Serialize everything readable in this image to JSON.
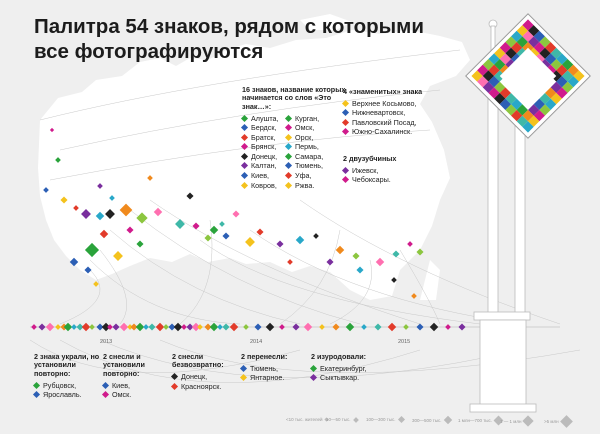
{
  "title": "Палитра 54 знаков, рядом с которыми все фотографируются",
  "colors": {
    "background": "#efefef",
    "map": "#ffffff",
    "ink": "#222222",
    "accent_magenta": "#d01b8c",
    "accent_green": "#2aa33b",
    "accent_blue": "#2c5fb5",
    "accent_yellow": "#f4c21d",
    "accent_red": "#e23b2a",
    "accent_purple": "#7a2f9e",
    "accent_cyan": "#29a8c9",
    "pole": "#ffffff"
  },
  "group16": {
    "heading": "16 знаков, название которых начинается со слов «Это знак…»:",
    "left": [
      {
        "text": "Алушта,",
        "color": "#2aa33b"
      },
      {
        "text": "Бердск,",
        "color": "#2c5fb5"
      },
      {
        "text": "Братск,",
        "color": "#e23b2a"
      },
      {
        "text": "Брянск,",
        "color": "#d01b8c"
      },
      {
        "text": "Донецк,",
        "color": "#222222"
      },
      {
        "text": "Калтан,",
        "color": "#7a2f9e"
      },
      {
        "text": "Киев,",
        "color": "#2c5fb5"
      },
      {
        "text": "Ковров,",
        "color": "#f4c21d"
      }
    ],
    "right": [
      {
        "text": "Курган,",
        "color": "#2aa33b"
      },
      {
        "text": "Омск,",
        "color": "#d01b8c"
      },
      {
        "text": "Орск,",
        "color": "#f4c21d"
      },
      {
        "text": "Пермь,",
        "color": "#29a8c9"
      },
      {
        "text": "Самара,",
        "color": "#2aa33b"
      },
      {
        "text": "Тюмень,",
        "color": "#2c5fb5"
      },
      {
        "text": "Уфа,",
        "color": "#e23b2a"
      },
      {
        "text": "Ржва.",
        "color": "#f4c21d"
      }
    ]
  },
  "group4": {
    "heading": "4 «знаменитых» знака",
    "items": [
      {
        "text": "Верхнее Косьмово,",
        "color": "#f4c21d"
      },
      {
        "text": "Нижневартовск,",
        "color": "#2c5fb5"
      },
      {
        "text": "Павловский Посад,",
        "color": "#e23b2a"
      },
      {
        "text": "Южно-Сахалинск.",
        "color": "#d01b8c"
      }
    ]
  },
  "group2": {
    "heading": "2 двузубчиных",
    "items": [
      {
        "text": "Ижевск,",
        "color": "#7a2f9e"
      },
      {
        "text": "Чебоксары.",
        "color": "#d01b8c"
      }
    ]
  },
  "bottom": [
    {
      "heading": "2 знака украли, но установили повторно:",
      "items": [
        {
          "text": "Рубцовск,",
          "color": "#2aa33b"
        },
        {
          "text": "Ярославль.",
          "color": "#2c5fb5"
        }
      ]
    },
    {
      "heading": "2 снесли и установили повторно:",
      "items": [
        {
          "text": "Киев,",
          "color": "#2c5fb5"
        },
        {
          "text": "Омск.",
          "color": "#d01b8c"
        }
      ]
    },
    {
      "heading": "2 снесли безвозвратно:",
      "items": [
        {
          "text": "Донецк,",
          "color": "#222222"
        },
        {
          "text": "Красноярск.",
          "color": "#e23b2a"
        }
      ]
    },
    {
      "heading": "2 перенесли:",
      "items": [
        {
          "text": "Тюмень,",
          "color": "#2c5fb5"
        },
        {
          "text": "Янтарное.",
          "color": "#f4c21d"
        }
      ]
    },
    {
      "heading": "2 изуродовали:",
      "items": [
        {
          "text": "Екатеринбург,",
          "color": "#2aa33b"
        },
        {
          "text": "Сыктывкар.",
          "color": "#7a2f9e"
        }
      ]
    }
  ],
  "years": [
    "2013",
    "2014",
    "2015"
  ],
  "legend": [
    "<10 тыс. жителей",
    "10—50 тыс.",
    "100—300 тыс.",
    "300—500 тыс.",
    "1 млн—700 тыс.",
    "1 — 1 млн",
    ">5 млн"
  ]
}
